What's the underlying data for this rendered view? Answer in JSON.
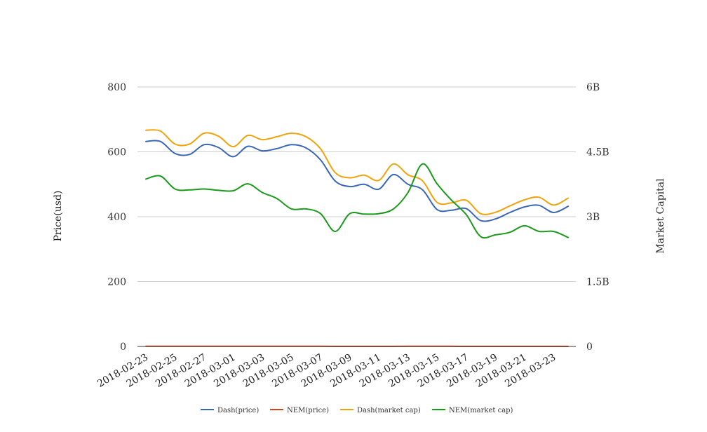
{
  "chart_data": {
    "type": "line",
    "x": [
      "2018-02-23",
      "2018-02-24",
      "2018-02-25",
      "2018-02-26",
      "2018-02-27",
      "2018-02-28",
      "2018-03-01",
      "2018-03-02",
      "2018-03-03",
      "2018-03-04",
      "2018-03-05",
      "2018-03-06",
      "2018-03-07",
      "2018-03-08",
      "2018-03-09",
      "2018-03-10",
      "2018-03-11",
      "2018-03-12",
      "2018-03-13",
      "2018-03-14",
      "2018-03-15",
      "2018-03-16",
      "2018-03-17",
      "2018-03-18",
      "2018-03-19",
      "2018-03-20",
      "2018-03-21",
      "2018-03-22",
      "2018-03-23",
      "2018-03-24"
    ],
    "x_tick_labels": [
      "2018-02-23",
      "2018-02-25",
      "2018-02-27",
      "2018-03-01",
      "2018-03-03",
      "2018-03-05",
      "2018-03-07",
      "2018-03-09",
      "2018-03-11",
      "2018-03-13",
      "2018-03-15",
      "2018-03-17",
      "2018-03-19",
      "2018-03-21",
      "2018-03-23"
    ],
    "y_left": {
      "label": "Price(usd)",
      "ticks": [
        "0",
        "200",
        "400",
        "600",
        "800"
      ],
      "ylim": [
        0,
        800
      ]
    },
    "y_right": {
      "label": "Market Capital",
      "ticks": [
        "0",
        "1.5B",
        "3B",
        "4.5B",
        "6B"
      ],
      "ylim": [
        0,
        6000000000
      ]
    },
    "grid": true,
    "legend_position": "bottom",
    "series": [
      {
        "name": "Dash(price)",
        "axis": "left",
        "color": "#3a66b8",
        "values": [
          632,
          632,
          595,
          592,
          622,
          613,
          585,
          617,
          603,
          610,
          622,
          612,
          575,
          510,
          493,
          500,
          485,
          530,
          500,
          483,
          422,
          420,
          425,
          388,
          393,
          413,
          430,
          435,
          413,
          432
        ]
      },
      {
        "name": "NEM(price)",
        "axis": "left",
        "color": "#d4441c",
        "values": [
          0.42,
          0.42,
          0.39,
          0.39,
          0.4,
          0.4,
          0.38,
          0.4,
          0.39,
          0.4,
          0.4,
          0.39,
          0.37,
          0.31,
          0.3,
          0.3,
          0.3,
          0.32,
          0.36,
          0.42,
          0.37,
          0.33,
          0.3,
          0.25,
          0.25,
          0.26,
          0.27,
          0.26,
          0.25,
          0.25
        ]
      },
      {
        "name": "Dash(market cap)",
        "axis": "right",
        "color": "#f0a30a",
        "values": [
          5000000000,
          4980000000,
          4680000000,
          4680000000,
          4930000000,
          4860000000,
          4620000000,
          4880000000,
          4780000000,
          4850000000,
          4930000000,
          4850000000,
          4570000000,
          4020000000,
          3900000000,
          3960000000,
          3840000000,
          4220000000,
          3970000000,
          3830000000,
          3330000000,
          3320000000,
          3380000000,
          3070000000,
          3100000000,
          3250000000,
          3390000000,
          3450000000,
          3270000000,
          3430000000
        ]
      },
      {
        "name": "NEM(market cap)",
        "axis": "right",
        "color": "#1a9a1a",
        "values": [
          3870000000,
          3940000000,
          3640000000,
          3620000000,
          3640000000,
          3610000000,
          3600000000,
          3760000000,
          3560000000,
          3420000000,
          3180000000,
          3180000000,
          3070000000,
          2660000000,
          3070000000,
          3060000000,
          3070000000,
          3180000000,
          3560000000,
          4220000000,
          3760000000,
          3380000000,
          3050000000,
          2540000000,
          2580000000,
          2640000000,
          2790000000,
          2660000000,
          2660000000,
          2520000000
        ]
      }
    ]
  }
}
